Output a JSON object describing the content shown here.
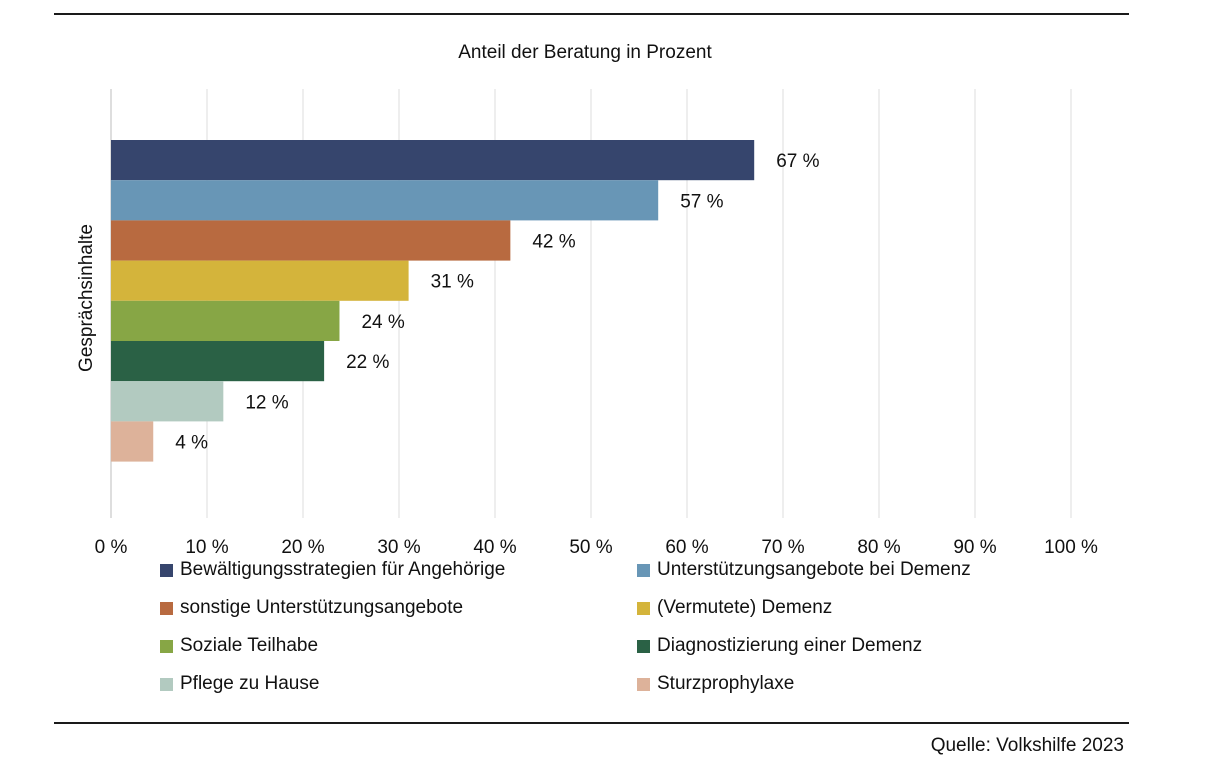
{
  "chart_data": {
    "type": "bar",
    "orientation": "horizontal",
    "title": "Anteil der Beratung in Prozent",
    "ylabel": "Gesprächsinhalte",
    "xlim": [
      0,
      100
    ],
    "x_ticks": [
      "0 %",
      "10 %",
      "20 %",
      "30 %",
      "40 %",
      "50 %",
      "60 %",
      "70 %",
      "80 %",
      "90 %",
      "100 %"
    ],
    "grid": true,
    "legend_position": "bottom",
    "series": [
      {
        "name": "Bewältigungsstrategien für Angehörige",
        "value": 67,
        "label": "67 %",
        "color": "#36456d"
      },
      {
        "name": "Unterstützungsangebote bei Demenz",
        "value": 57,
        "label": "57 %",
        "color": "#6896b6"
      },
      {
        "name": "sonstige Unterstützungsangebote",
        "value": 41.6,
        "label": "42 %",
        "color": "#b86a40"
      },
      {
        "name": "(Vermutete) Demenz",
        "value": 31,
        "label": "31 %",
        "color": "#d4b43b"
      },
      {
        "name": "Soziale Teilhabe",
        "value": 23.8,
        "label": "24 %",
        "color": "#87a645"
      },
      {
        "name": "Diagnostizierung einer Demenz",
        "value": 22.2,
        "label": "22 %",
        "color": "#2a6145"
      },
      {
        "name": "Pflege zu Hause",
        "value": 11.7,
        "label": "12 %",
        "color": "#b2cac0"
      },
      {
        "name": "Sturzprophylaxe",
        "value": 4.4,
        "label": "4 %",
        "color": "#ddb29a"
      }
    ]
  },
  "source": "Quelle: Volkshilfe 2023"
}
